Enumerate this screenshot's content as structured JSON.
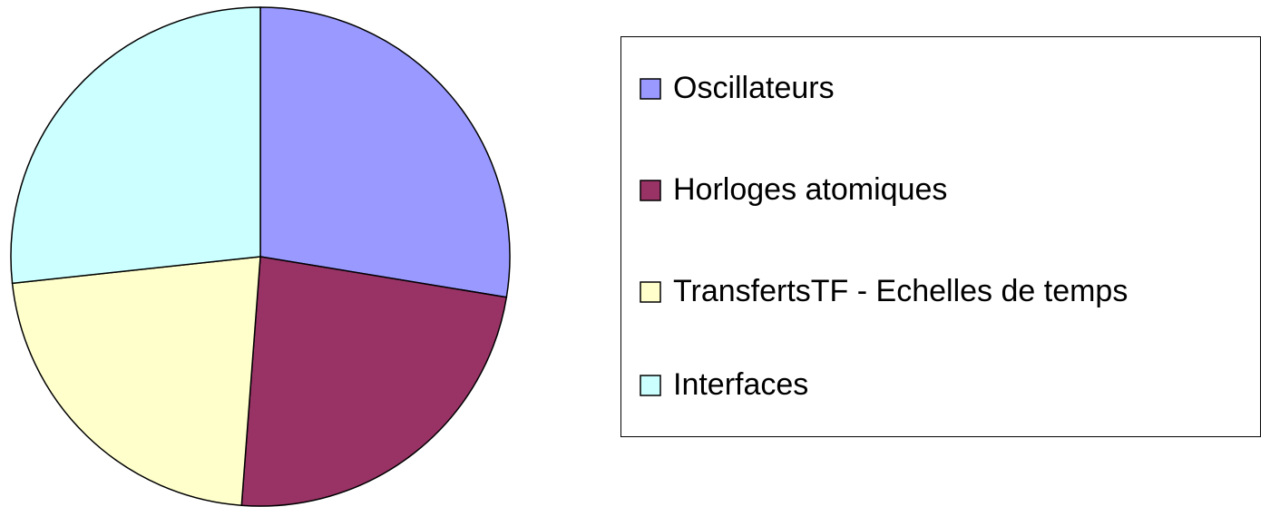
{
  "chart_data": {
    "type": "pie",
    "categories": [
      "Oscillateurs",
      "Horloges atomiques",
      "TransfertsTF - Echelles de temps",
      "Interfaces"
    ],
    "values": [
      27.6,
      23.6,
      22.1,
      26.7
    ],
    "colors": [
      "#9999ff",
      "#993366",
      "#ffffcc",
      "#ccffff"
    ],
    "legend": "right"
  }
}
